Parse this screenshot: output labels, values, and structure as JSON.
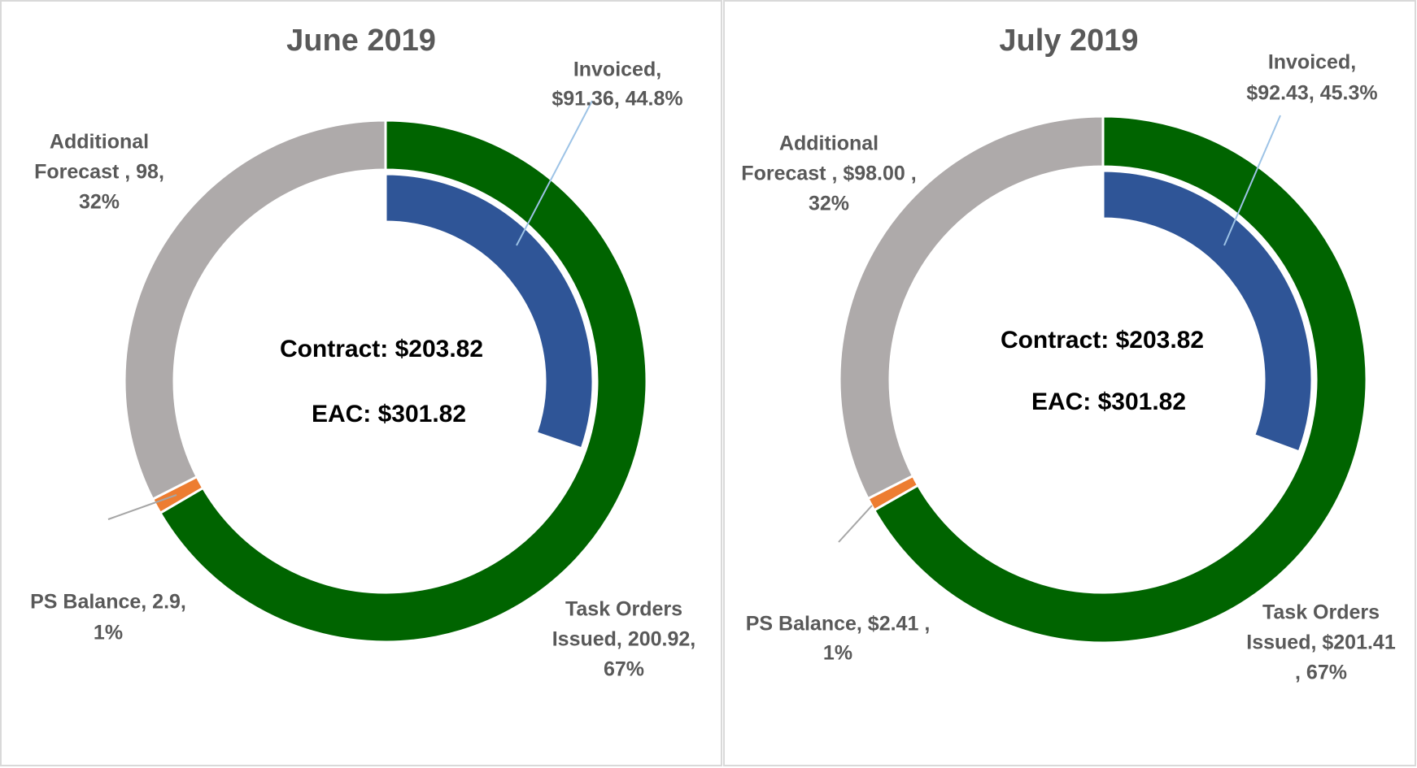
{
  "chart_data": [
    {
      "type": "doughnut",
      "title": "June 2019",
      "rings": [
        {
          "values": [
            200.92,
            2.9,
            98
          ],
          "colors": [
            "#006400",
            "#ed7d31",
            "#aeaaaa"
          ],
          "value_labels": [
            [
              "Task Orders",
              "Issued, 200.92,",
              "67%"
            ],
            [
              "PS Balance, 2.9,",
              "1%"
            ],
            [
              "Additional",
              "Forecast , 98,",
              "32%"
            ]
          ]
        },
        {
          "values": [
            91.36
          ],
          "colors": [
            "#2f5597"
          ],
          "value_labels": [
            [
              "Invoiced,",
              "$91.36, 44.8%"
            ]
          ]
        }
      ],
      "annotations": [
        "Contract: $203.82",
        "EAC: $301.82"
      ]
    },
    {
      "type": "doughnut",
      "title": "July 2019",
      "rings": [
        {
          "values": [
            201.41,
            2.41,
            98.0
          ],
          "colors": [
            "#006400",
            "#ed7d31",
            "#aeaaaa"
          ],
          "value_labels": [
            [
              "Task Orders",
              "Issued,  $201.41",
              ", 67%"
            ],
            [
              "PS Balance,  $2.41 ,",
              "1%"
            ],
            [
              "Additional",
              "Forecast ,  $98.00 ,",
              "32%"
            ]
          ]
        },
        {
          "values": [
            92.43
          ],
          "colors": [
            "#2f5597"
          ],
          "value_labels": [
            [
              "Invoiced,",
              "$92.43, 45.3%"
            ]
          ]
        }
      ],
      "annotations": [
        "Contract: $203.82",
        "EAC: $301.82"
      ]
    }
  ]
}
